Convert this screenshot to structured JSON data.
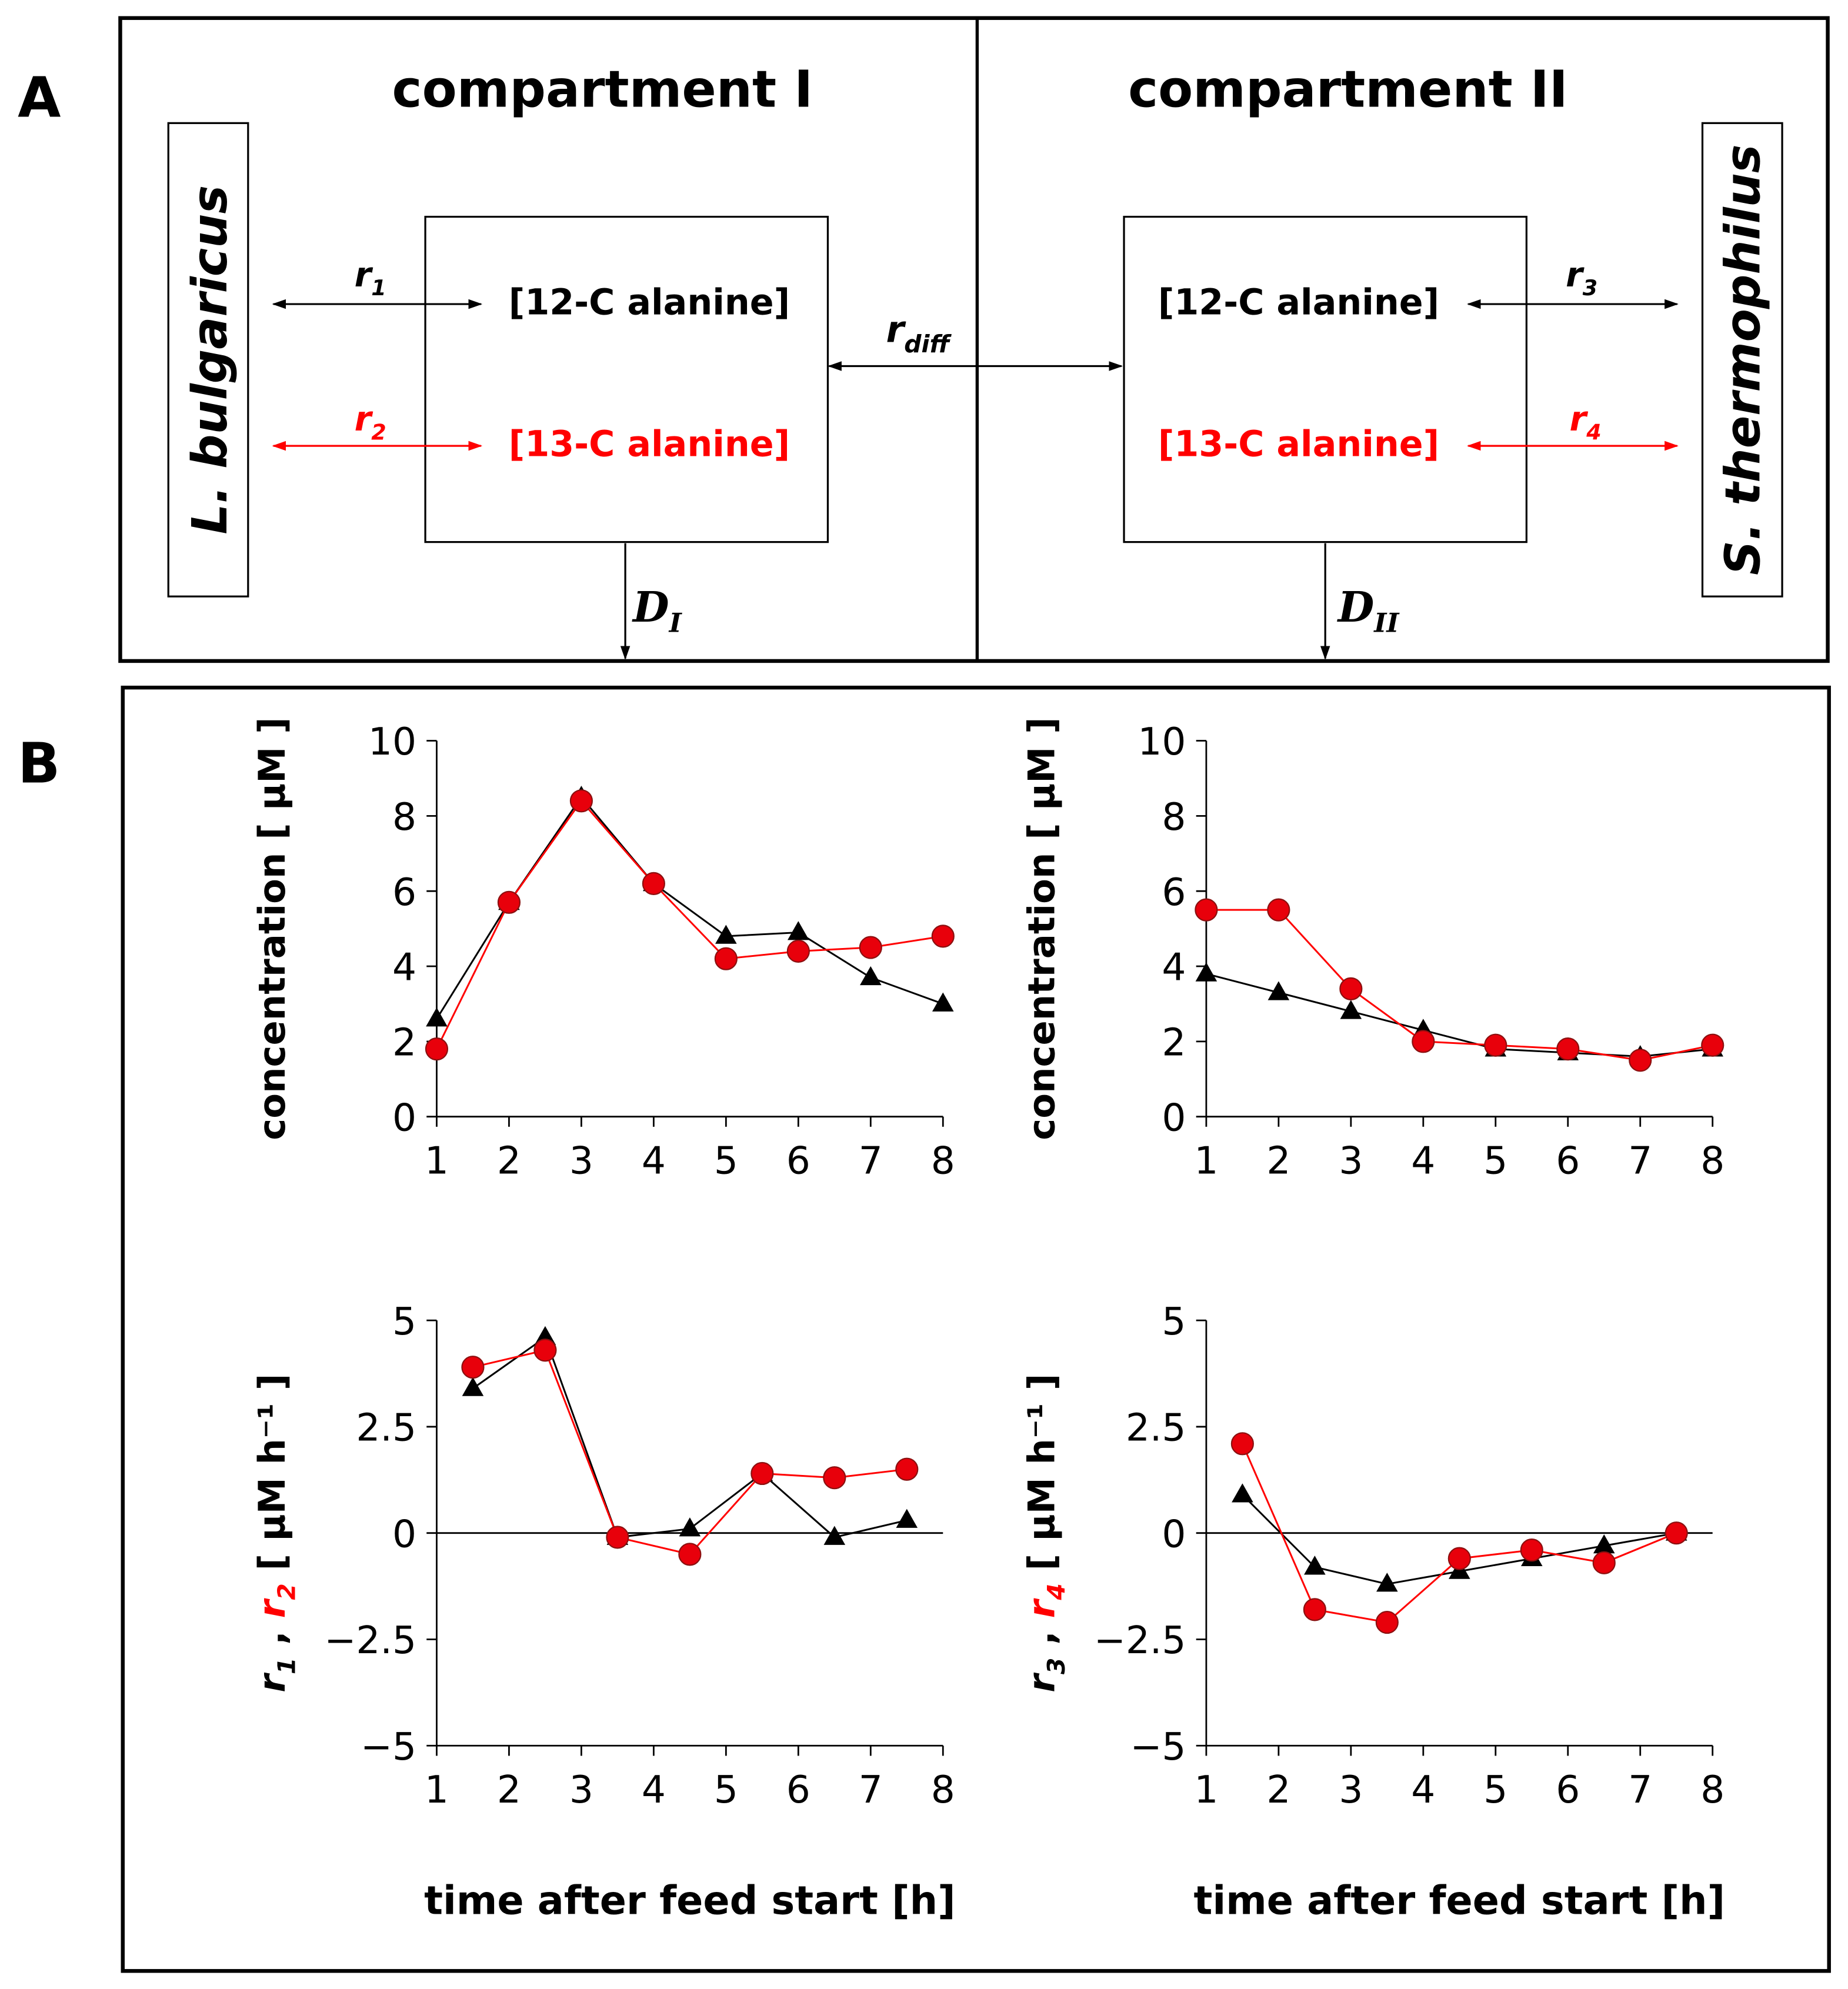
{
  "panel_a": {
    "label": "A",
    "compartment_1": "compartment I",
    "compartment_2": "compartment II",
    "organism_left": "L. bulgaricus",
    "organism_right": "S. thermophilus",
    "box_left": {
      "c12": "[12-C alanine]",
      "c13": "[13-C alanine]"
    },
    "box_right": {
      "c12": "[12-C alanine]",
      "c13": "[13-C alanine]"
    },
    "r1": {
      "base": "r",
      "sub": "1"
    },
    "r2": {
      "base": "r",
      "sub": "2"
    },
    "r3": {
      "base": "r",
      "sub": "3"
    },
    "r4": {
      "base": "r",
      "sub": "4"
    },
    "rdiff": {
      "base": "r",
      "sub": "diff"
    },
    "d1": {
      "base": "D",
      "sub": "I"
    },
    "d2": {
      "base": "D",
      "sub": "II"
    }
  },
  "panel_b": {
    "label": "B"
  },
  "colors": {
    "black": "#000000",
    "red": "#ff0000",
    "marker_red": "#e8000b"
  },
  "chart_data": [
    {
      "type": "line",
      "id": "conc-I",
      "ylabel": "concentration [ µM ]",
      "xlabel": "",
      "xlim": [
        1,
        8
      ],
      "ylim": [
        0,
        10
      ],
      "xticks": [
        "1",
        "2",
        "3",
        "4",
        "5",
        "6",
        "7",
        "8"
      ],
      "yticks": [
        "0",
        "2",
        "4",
        "6",
        "8",
        "10"
      ],
      "series": [
        {
          "name": "12-C alanine",
          "marker": "triangle",
          "color": "#000000",
          "x": [
            1,
            2,
            3,
            4,
            5,
            6,
            7,
            8
          ],
          "values": [
            2.6,
            5.7,
            8.5,
            6.2,
            4.8,
            4.9,
            3.7,
            3.0
          ]
        },
        {
          "name": "13-C alanine",
          "marker": "circle",
          "color": "#ff0000",
          "x": [
            1,
            2,
            3,
            4,
            5,
            6,
            7,
            8
          ],
          "values": [
            1.8,
            5.7,
            8.4,
            6.2,
            4.2,
            4.4,
            4.5,
            4.8
          ]
        }
      ]
    },
    {
      "type": "line",
      "id": "conc-II",
      "ylabel": "concentration [ µM ]",
      "xlabel": "",
      "xlim": [
        1,
        8
      ],
      "ylim": [
        0,
        10
      ],
      "xticks": [
        "1",
        "2",
        "3",
        "4",
        "5",
        "6",
        "7",
        "8"
      ],
      "yticks": [
        "0",
        "2",
        "4",
        "6",
        "8",
        "10"
      ],
      "series": [
        {
          "name": "12-C alanine",
          "marker": "triangle",
          "color": "#000000",
          "x": [
            1,
            2,
            3,
            4,
            5,
            6,
            7,
            8
          ],
          "values": [
            3.8,
            3.3,
            2.8,
            2.3,
            1.8,
            1.7,
            1.6,
            1.8
          ]
        },
        {
          "name": "13-C alanine",
          "marker": "circle",
          "color": "#ff0000",
          "x": [
            1,
            2,
            3,
            4,
            5,
            6,
            7,
            8
          ],
          "values": [
            5.5,
            5.5,
            3.4,
            2.0,
            1.9,
            1.8,
            1.5,
            1.9
          ]
        }
      ]
    },
    {
      "type": "line",
      "id": "rate-I",
      "ylabel": {
        "r_a": "r",
        "sub_a": "1",
        "r_b": "r",
        "sub_b": "2",
        "sep": " , ",
        "units": " [ µM h⁻¹ ]"
      },
      "xlabel": "time after feed start [h]",
      "xlim": [
        1,
        8
      ],
      "ylim": [
        -5,
        5
      ],
      "xticks": [
        "1",
        "2",
        "3",
        "4",
        "5",
        "6",
        "7",
        "8"
      ],
      "yticks": [
        "−5",
        "−2.5",
        "0",
        "2.5",
        "5"
      ],
      "ytick_values": [
        -5,
        -2.5,
        0,
        2.5,
        5
      ],
      "series": [
        {
          "name": "r1",
          "marker": "triangle",
          "color": "#000000",
          "x": [
            1.5,
            2.5,
            3.5,
            4.5,
            5.5,
            6.5,
            7.5
          ],
          "values": [
            3.4,
            4.6,
            -0.1,
            0.1,
            1.4,
            -0.1,
            0.3
          ]
        },
        {
          "name": "r2",
          "marker": "circle",
          "color": "#ff0000",
          "x": [
            1.5,
            2.5,
            3.5,
            4.5,
            5.5,
            6.5,
            7.5
          ],
          "values": [
            3.9,
            4.3,
            -0.1,
            -0.5,
            1.4,
            1.3,
            1.5
          ]
        }
      ]
    },
    {
      "type": "line",
      "id": "rate-II",
      "ylabel": {
        "r_a": "r",
        "sub_a": "3",
        "r_b": "r",
        "sub_b": "4",
        "sep": " , ",
        "units": " [ µM h⁻¹ ]"
      },
      "xlabel": "time after feed start [h]",
      "xlim": [
        1,
        8
      ],
      "ylim": [
        -5,
        5
      ],
      "xticks": [
        "1",
        "2",
        "3",
        "4",
        "5",
        "6",
        "7",
        "8"
      ],
      "yticks": [
        "−5",
        "−2.5",
        "0",
        "2.5",
        "5"
      ],
      "ytick_values": [
        -5,
        -2.5,
        0,
        2.5,
        5
      ],
      "series": [
        {
          "name": "r3",
          "marker": "triangle",
          "color": "#000000",
          "x": [
            1.5,
            2.5,
            3.5,
            4.5,
            5.5,
            6.5,
            7.5
          ],
          "values": [
            0.9,
            -0.8,
            -1.2,
            -0.9,
            -0.6,
            -0.3,
            0.0
          ]
        },
        {
          "name": "r4",
          "marker": "circle",
          "color": "#ff0000",
          "x": [
            1.5,
            2.5,
            3.5,
            4.5,
            5.5,
            6.5,
            7.5
          ],
          "values": [
            2.1,
            -1.8,
            -2.1,
            -0.6,
            -0.4,
            -0.7,
            0.0
          ]
        }
      ]
    }
  ]
}
